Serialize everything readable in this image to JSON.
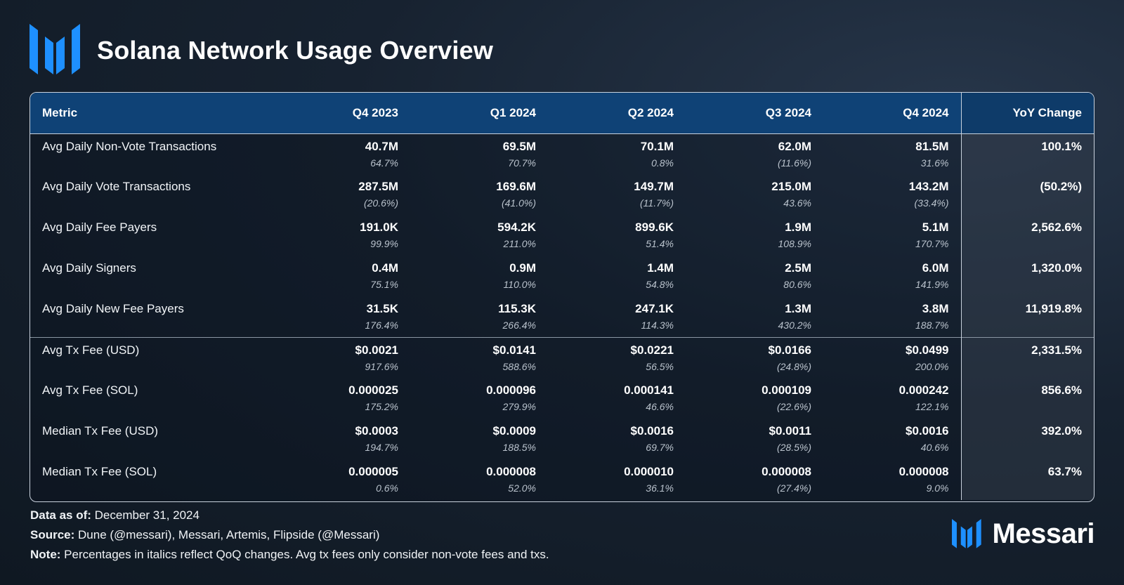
{
  "header": {
    "title": "Solana Network Usage Overview"
  },
  "colors": {
    "accent": "#1e90ff",
    "header_bg": "#0f4276",
    "yoy_bg": "#2c3744",
    "background": "#172230"
  },
  "chart_data": {
    "type": "table",
    "title": "Solana Network Usage Overview",
    "columns": [
      "Metric",
      "Q4 2023",
      "Q1 2024",
      "Q2 2024",
      "Q3 2024",
      "Q4 2024",
      "YoY Change"
    ],
    "rows": [
      {
        "metric": "Avg Daily Non-Vote Transactions",
        "values": [
          "40.7M",
          "69.5M",
          "70.1M",
          "62.0M",
          "81.5M"
        ],
        "qoq": [
          "64.7%",
          "70.7%",
          "0.8%",
          "(11.6%)",
          "31.6%"
        ],
        "yoy": "100.1%"
      },
      {
        "metric": "Avg Daily Vote Transactions",
        "values": [
          "287.5M",
          "169.6M",
          "149.7M",
          "215.0M",
          "143.2M"
        ],
        "qoq": [
          "(20.6%)",
          "(41.0%)",
          "(11.7%)",
          "43.6%",
          "(33.4%)"
        ],
        "yoy": "(50.2%)"
      },
      {
        "metric": "Avg Daily Fee Payers",
        "values": [
          "191.0K",
          "594.2K",
          "899.6K",
          "1.9M",
          "5.1M"
        ],
        "qoq": [
          "99.9%",
          "211.0%",
          "51.4%",
          "108.9%",
          "170.7%"
        ],
        "yoy": "2,562.6%"
      },
      {
        "metric": "Avg Daily Signers",
        "values": [
          "0.4M",
          "0.9M",
          "1.4M",
          "2.5M",
          "6.0M"
        ],
        "qoq": [
          "75.1%",
          "110.0%",
          "54.8%",
          "80.6%",
          "141.9%"
        ],
        "yoy": "1,320.0%"
      },
      {
        "metric": "Avg Daily New Fee Payers",
        "values": [
          "31.5K",
          "115.3K",
          "247.1K",
          "1.3M",
          "3.8M"
        ],
        "qoq": [
          "176.4%",
          "266.4%",
          "114.3%",
          "430.2%",
          "188.7%"
        ],
        "yoy": "11,919.8%"
      },
      {
        "metric": "Avg Tx Fee (USD)",
        "values": [
          "$0.0021",
          "$0.0141",
          "$0.0221",
          "$0.0166",
          "$0.0499"
        ],
        "qoq": [
          "917.6%",
          "588.6%",
          "56.5%",
          "(24.8%)",
          "200.0%"
        ],
        "yoy": "2,331.5%"
      },
      {
        "metric": "Avg Tx Fee (SOL)",
        "values": [
          "0.000025",
          "0.000096",
          "0.000141",
          "0.000109",
          "0.000242"
        ],
        "qoq": [
          "175.2%",
          "279.9%",
          "46.6%",
          "(22.6%)",
          "122.1%"
        ],
        "yoy": "856.6%"
      },
      {
        "metric": "Median Tx Fee (USD)",
        "values": [
          "$0.0003",
          "$0.0009",
          "$0.0016",
          "$0.0011",
          "$0.0016"
        ],
        "qoq": [
          "194.7%",
          "188.5%",
          "69.7%",
          "(28.5%)",
          "40.6%"
        ],
        "yoy": "392.0%"
      },
      {
        "metric": "Median Tx Fee (SOL)",
        "values": [
          "0.000005",
          "0.000008",
          "0.000010",
          "0.000008",
          "0.000008"
        ],
        "qoq": [
          "0.6%",
          "52.0%",
          "36.1%",
          "(27.4%)",
          "9.0%"
        ],
        "yoy": "63.7%"
      }
    ]
  },
  "footer": {
    "data_as_of_label": "Data as of:",
    "data_as_of_value": " December 31, 2024",
    "source_label": "Source:",
    "source_value": " Dune (@messari), Messari, Artemis, Flipside (@Messari)",
    "note_label": "Note:",
    "note_value": " Percentages in italics reflect QoQ changes. Avg tx fees only consider non-vote fees and txs."
  },
  "brand": {
    "name": "Messari"
  }
}
